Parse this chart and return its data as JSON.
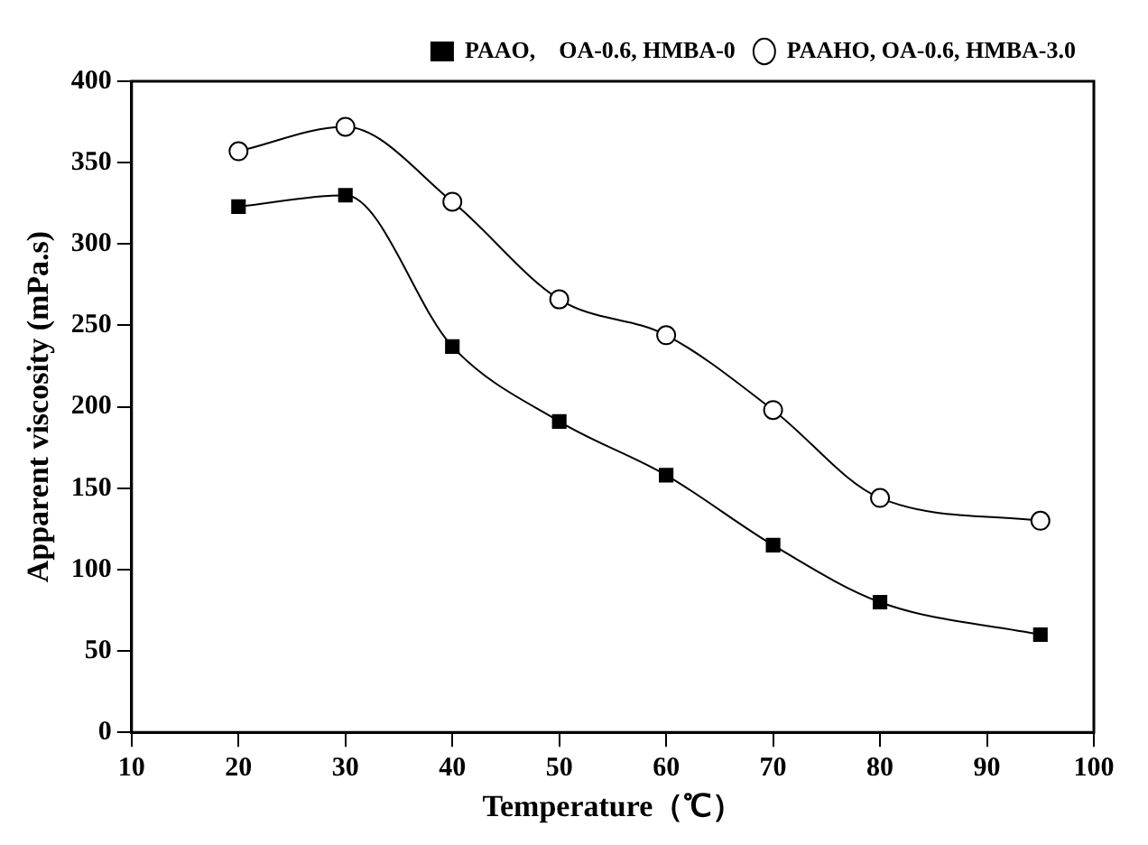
{
  "chart_data": {
    "type": "line",
    "xlabel": "Temperature（℃）",
    "ylabel": "Apparent viscosity (mPa.s)",
    "x": [
      20,
      30,
      40,
      50,
      60,
      70,
      80,
      95
    ],
    "series": [
      {
        "name": "PAAO,    OA-0.6, HMBA-0",
        "color": "#000000",
        "marker": "square",
        "values": [
          323,
          330,
          237,
          191,
          158,
          115,
          80,
          60
        ]
      },
      {
        "name": "PAAHO, OA-0.6, HMBA-3.0",
        "color": "#000000",
        "marker": "circle",
        "values": [
          357,
          372,
          326,
          266,
          244,
          198,
          144,
          130
        ]
      }
    ],
    "xlim": [
      10,
      100
    ],
    "xticks": [
      10,
      20,
      30,
      40,
      50,
      60,
      70,
      80,
      90,
      100
    ],
    "ylim": [
      0,
      400
    ],
    "yticks": [
      0,
      50,
      100,
      150,
      200,
      250,
      300,
      350,
      400
    ],
    "grid": false,
    "legend": "top right",
    "line_style": "solid"
  }
}
